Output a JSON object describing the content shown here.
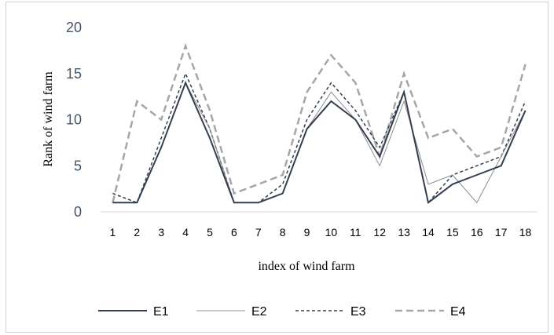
{
  "chart_data": {
    "type": "line",
    "title": "",
    "xlabel": "index of wind farm",
    "ylabel": "Rank of wind farm",
    "categories": [
      "1",
      "2",
      "3",
      "4",
      "5",
      "6",
      "7",
      "8",
      "9",
      "10",
      "11",
      "12",
      "13",
      "14",
      "15",
      "16",
      "17",
      "18"
    ],
    "ylim": [
      0,
      20
    ],
    "yticks": [
      "0",
      "5",
      "10",
      "15",
      "20"
    ],
    "grid": false,
    "legend_position": "bottom",
    "series": [
      {
        "name": "E1",
        "color": "#333f50",
        "dash": "solid-thick",
        "values": [
          1,
          1,
          7,
          14,
          8,
          1,
          1,
          2,
          9,
          12,
          10,
          6,
          13,
          1,
          3,
          4,
          5,
          11
        ]
      },
      {
        "name": "E2",
        "color": "#8c8c8c",
        "dash": "solid-thin",
        "values": [
          1,
          1,
          7,
          14,
          9,
          1,
          1,
          2,
          9,
          13,
          10,
          5,
          12,
          3,
          4,
          1,
          6,
          11
        ]
      },
      {
        "name": "E3",
        "color": "#333f50",
        "dash": "short-dash",
        "values": [
          2,
          1,
          8,
          15,
          9,
          1,
          1,
          3,
          10,
          14,
          11,
          7,
          13,
          1,
          4,
          5,
          6,
          12
        ]
      },
      {
        "name": "E4",
        "color": "#a6a6a6",
        "dash": "long-dash",
        "values": [
          1,
          12,
          10,
          18,
          11,
          2,
          3,
          4,
          13,
          17,
          14,
          6,
          15,
          8,
          9,
          6,
          7,
          16
        ]
      }
    ]
  }
}
